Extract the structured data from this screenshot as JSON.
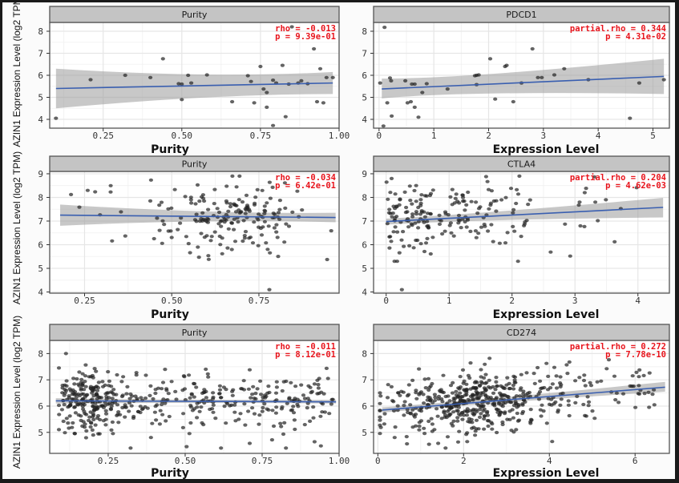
{
  "figure": {
    "ylabel": "AZIN1 Expression Level (log2 TPM)",
    "colors": {
      "points": "#222222",
      "fit_line": "#3a5fb0",
      "ci_band": "#9a9a9a",
      "strip_bg": "#c4c4c4",
      "stat_text": "#e8141c",
      "grid": "#e6e6e6"
    }
  },
  "chart_data": [
    {
      "type": "scatter",
      "row": 1,
      "col": 1,
      "title": "Purity",
      "xlabel": "Purity",
      "ylabel": "AZIN1 Expression Level (log2 TPM)",
      "xlim": [
        0.08,
        1.0
      ],
      "ylim": [
        3.6,
        8.4
      ],
      "xticks": [
        0.25,
        0.5,
        0.75,
        1.0
      ],
      "xtick_labels": [
        "0.25",
        "0.50",
        "0.75",
        "1.00"
      ],
      "yticks": [
        4,
        5,
        6,
        7,
        8
      ],
      "ytick_labels": [
        "4",
        "5",
        "6",
        "7",
        "8"
      ],
      "stat_lines": [
        "rho = -0.013",
        "p = 9.39e-01"
      ],
      "fit": {
        "x": [
          0.1,
          0.98
        ],
        "y": [
          5.4,
          5.65
        ],
        "ci_lo": [
          4.5,
          5.15
        ],
        "ci_hi": [
          6.3,
          6.15
        ],
        "ci_mid": [
          0.6,
          5.52,
          5.15,
          5.85
        ]
      },
      "points": [
        [
          0.1,
          4.05
        ],
        [
          0.21,
          5.8
        ],
        [
          0.32,
          6.0
        ],
        [
          0.4,
          5.9
        ],
        [
          0.44,
          6.75
        ],
        [
          0.49,
          5.62
        ],
        [
          0.5,
          5.6
        ],
        [
          0.5,
          4.9
        ],
        [
          0.52,
          6.0
        ],
        [
          0.53,
          5.65
        ],
        [
          0.58,
          6.02
        ],
        [
          0.66,
          4.8
        ],
        [
          0.71,
          5.98
        ],
        [
          0.72,
          5.72
        ],
        [
          0.73,
          4.75
        ],
        [
          0.75,
          6.4
        ],
        [
          0.76,
          5.38
        ],
        [
          0.77,
          5.22
        ],
        [
          0.77,
          4.55
        ],
        [
          0.79,
          3.72
        ],
        [
          0.79,
          5.78
        ],
        [
          0.8,
          5.65
        ],
        [
          0.82,
          6.45
        ],
        [
          0.83,
          4.12
        ],
        [
          0.84,
          5.6
        ],
        [
          0.87,
          5.65
        ],
        [
          0.88,
          5.75
        ],
        [
          0.9,
          5.62
        ],
        [
          0.92,
          7.2
        ],
        [
          0.93,
          4.8
        ],
        [
          0.94,
          6.3
        ],
        [
          0.95,
          4.75
        ],
        [
          0.96,
          5.9
        ],
        [
          0.98,
          5.9
        ],
        [
          0.85,
          8.2
        ]
      ]
    },
    {
      "type": "scatter",
      "row": 1,
      "col": 2,
      "title": "PDCD1",
      "xlabel": "Expression Level",
      "ylabel": "AZIN1 Expression Level (log2 TPM)",
      "xlim": [
        -0.1,
        5.3
      ],
      "ylim": [
        3.6,
        8.4
      ],
      "xticks": [
        0,
        1,
        2,
        3,
        4,
        5
      ],
      "xtick_labels": [
        "0",
        "1",
        "2",
        "3",
        "4",
        "5"
      ],
      "yticks": [
        4,
        5,
        6,
        7,
        8
      ],
      "ytick_labels": [
        "4",
        "5",
        "6",
        "7",
        "8"
      ],
      "stat_lines": [
        "partial.rho = 0.344",
        "p = 4.31e-02"
      ],
      "fit": {
        "x": [
          0.05,
          5.2
        ],
        "y": [
          5.38,
          5.95
        ],
        "ci_lo": [
          4.95,
          5.15
        ],
        "ci_hi": [
          5.85,
          6.75
        ],
        "ci_mid": [
          1.6,
          5.55,
          5.3,
          5.85
        ]
      },
      "points": [
        [
          0.02,
          5.65
        ],
        [
          0.08,
          3.7
        ],
        [
          0.1,
          8.18
        ],
        [
          0.15,
          4.75
        ],
        [
          0.2,
          5.88
        ],
        [
          0.22,
          5.75
        ],
        [
          0.23,
          4.15
        ],
        [
          0.48,
          5.75
        ],
        [
          0.52,
          4.75
        ],
        [
          0.58,
          4.8
        ],
        [
          0.6,
          5.6
        ],
        [
          0.65,
          5.6
        ],
        [
          0.65,
          4.55
        ],
        [
          0.72,
          4.1
        ],
        [
          0.79,
          5.22
        ],
        [
          0.87,
          5.62
        ],
        [
          1.25,
          5.38
        ],
        [
          1.75,
          5.98
        ],
        [
          1.78,
          6.0
        ],
        [
          1.82,
          6.02
        ],
        [
          1.78,
          5.58
        ],
        [
          2.03,
          6.75
        ],
        [
          2.12,
          4.92
        ],
        [
          2.3,
          6.4
        ],
        [
          2.33,
          6.45
        ],
        [
          2.45,
          4.8
        ],
        [
          2.6,
          5.65
        ],
        [
          2.8,
          7.2
        ],
        [
          2.9,
          5.9
        ],
        [
          2.97,
          5.9
        ],
        [
          3.2,
          6.02
        ],
        [
          3.38,
          6.3
        ],
        [
          3.82,
          5.8
        ],
        [
          4.58,
          4.05
        ],
        [
          4.75,
          5.65
        ],
        [
          5.2,
          5.8
        ]
      ]
    },
    {
      "type": "scatter",
      "row": 2,
      "col": 1,
      "title": "Purity",
      "xlabel": "Purity",
      "ylabel": "AZIN1 Expression Level (log2 TPM)",
      "xlim": [
        0.15,
        0.98
      ],
      "ylim": [
        3.95,
        9.1
      ],
      "xticks": [
        0.25,
        0.5,
        0.75
      ],
      "xtick_labels": [
        "0.25",
        "0.50",
        "0.75"
      ],
      "yticks": [
        4,
        5,
        6,
        7,
        8,
        9
      ],
      "ytick_labels": [
        "4",
        "5",
        "6",
        "7",
        "8",
        "9"
      ],
      "stat_lines": [
        "rho = -0.034",
        "p = 6.42e-01"
      ],
      "fit": {
        "x": [
          0.18,
          0.97
        ],
        "y": [
          7.25,
          7.15
        ],
        "ci_lo": [
          6.8,
          6.95
        ],
        "ci_hi": [
          7.7,
          7.35
        ],
        "ci_mid": [
          0.6,
          7.2,
          7.1,
          7.3
        ]
      },
      "points": "generated:row2col1"
    },
    {
      "type": "scatter",
      "row": 2,
      "col": 2,
      "title": "CTLA4",
      "xlabel": "Expression Level",
      "ylabel": "AZIN1 Expression Level (log2 TPM)",
      "xlim": [
        -0.2,
        4.5
      ],
      "ylim": [
        3.95,
        9.1
      ],
      "xticks": [
        0,
        1,
        2,
        3,
        4
      ],
      "xtick_labels": [
        "0",
        "1",
        "2",
        "3",
        "4"
      ],
      "yticks": [
        4,
        5,
        6,
        7,
        8,
        9
      ],
      "ytick_labels": [
        "4",
        "5",
        "6",
        "7",
        "8",
        "9"
      ],
      "stat_lines": [
        "partial.rho = 0.204",
        "p = 4.62e-03"
      ],
      "fit": {
        "x": [
          0.0,
          4.4
        ],
        "y": [
          6.98,
          7.58
        ],
        "ci_lo": [
          6.85,
          7.15
        ],
        "ci_hi": [
          7.1,
          7.98
        ],
        "ci_mid": [
          1.5,
          7.18,
          7.08,
          7.3
        ]
      },
      "points": "generated:row2col2"
    },
    {
      "type": "scatter",
      "row": 3,
      "col": 1,
      "title": "Purity",
      "xlabel": "Purity",
      "ylabel": "AZIN1 Expression Level (log2 TPM)",
      "xlim": [
        0.06,
        1.0
      ],
      "ylim": [
        4.2,
        8.5
      ],
      "xticks": [
        0.25,
        0.5,
        0.75,
        1.0
      ],
      "xtick_labels": [
        "0.25",
        "0.50",
        "0.75",
        "1.00"
      ],
      "yticks": [
        5,
        6,
        7,
        8
      ],
      "ytick_labels": [
        "5",
        "6",
        "7",
        "8"
      ],
      "stat_lines": [
        "rho = -0.011",
        "p = 8.12e-01"
      ],
      "fit": {
        "x": [
          0.08,
          0.99
        ],
        "y": [
          6.2,
          6.16
        ],
        "ci_lo": [
          6.1,
          6.1
        ],
        "ci_hi": [
          6.3,
          6.24
        ],
        "ci_mid": [
          0.5,
          6.18,
          6.14,
          6.22
        ]
      },
      "points": "generated:row3col1"
    },
    {
      "type": "scatter",
      "row": 3,
      "col": 2,
      "title": "CD274",
      "xlabel": "Expression Level",
      "ylabel": "AZIN1 Expression Level (log2 TPM)",
      "xlim": [
        -0.1,
        6.8
      ],
      "ylim": [
        4.2,
        8.5
      ],
      "xticks": [
        0,
        2,
        4,
        6
      ],
      "xtick_labels": [
        "0",
        "2",
        "4",
        "6"
      ],
      "yticks": [
        5,
        6,
        7,
        8
      ],
      "ytick_labels": [
        "5",
        "6",
        "7",
        "8"
      ],
      "stat_lines": [
        "partial.rho = 0.272",
        "p = 7.78e-10"
      ],
      "fit": {
        "x": [
          0.1,
          6.7
        ],
        "y": [
          5.85,
          6.72
        ],
        "ci_lo": [
          5.75,
          6.55
        ],
        "ci_hi": [
          5.95,
          6.92
        ],
        "ci_mid": [
          2.5,
          6.18,
          6.12,
          6.24
        ]
      },
      "points": "generated:row3col2"
    }
  ]
}
